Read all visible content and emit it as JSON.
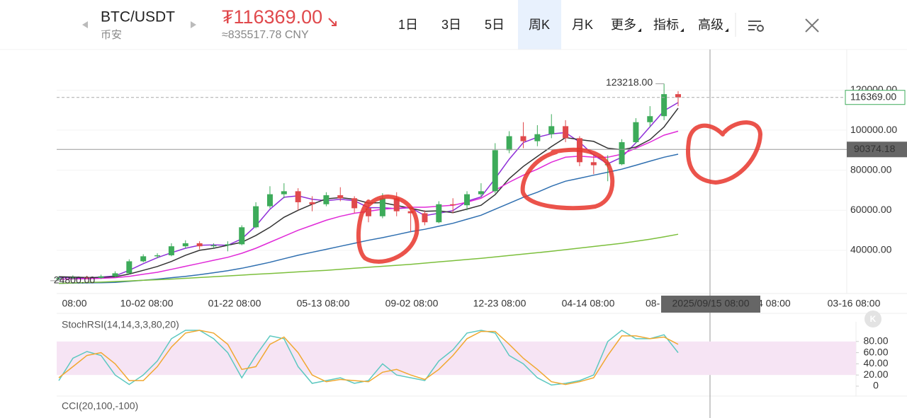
{
  "header": {
    "pair": "BTC/USDT",
    "exchange": "币安",
    "price": "₮116369.00",
    "price_cny": "≈835517.78 CNY"
  },
  "tabs": [
    "1日",
    "3日",
    "5日",
    "周K",
    "月K",
    "更多",
    "指标",
    "高级"
  ],
  "active_tab": 3,
  "chart_data": {
    "type": "candlestick",
    "open": [
      25500,
      26000,
      26500,
      26200,
      27000,
      28500,
      34500,
      37000,
      37500,
      42000,
      43500,
      42000,
      42500,
      43000,
      51500,
      62000,
      68000,
      69500,
      64000,
      63000,
      67500,
      66000,
      61000,
      57000,
      66000,
      59500,
      58500,
      54000,
      63000,
      62500,
      68000,
      69500,
      90000,
      97000,
      94500,
      98000,
      102000,
      96000,
      84000,
      82500,
      83000,
      94000,
      104000,
      107000,
      118000
    ],
    "high": [
      27000,
      27500,
      27300,
      27800,
      29500,
      35500,
      38000,
      38500,
      43500,
      45000,
      44500,
      43500,
      44500,
      52500,
      64000,
      72000,
      73500,
      71000,
      67000,
      69000,
      71500,
      67000,
      63000,
      68500,
      69000,
      61500,
      60000,
      64500,
      66000,
      69500,
      73500,
      93500,
      99500,
      104000,
      102500,
      108000,
      105000,
      97000,
      88000,
      87500,
      95500,
      106000,
      112000,
      123218,
      119500
    ],
    "low": [
      24800,
      25300,
      25500,
      25700,
      26500,
      28000,
      34000,
      36000,
      37000,
      41000,
      40500,
      41000,
      39500,
      42500,
      51000,
      61000,
      66000,
      60000,
      59500,
      62000,
      64500,
      58500,
      54000,
      56000,
      57000,
      49000,
      52500,
      53500,
      58500,
      60000,
      66500,
      68500,
      88500,
      91000,
      92000,
      96000,
      94000,
      82000,
      78000,
      74500,
      82500,
      93500,
      101500,
      105000,
      112000
    ],
    "close": [
      26000,
      26500,
      26200,
      27000,
      28500,
      34500,
      37000,
      37500,
      42000,
      43500,
      42000,
      42500,
      43000,
      51500,
      62000,
      68000,
      69500,
      64000,
      63000,
      67500,
      66000,
      61000,
      57000,
      66000,
      59500,
      58500,
      54000,
      63000,
      62500,
      68000,
      69500,
      90000,
      97000,
      94500,
      98000,
      102000,
      96000,
      84000,
      82500,
      83000,
      94000,
      104000,
      107000,
      118000,
      116369
    ],
    "up_color": "#3dab5a",
    "down_color": "#e0494c",
    "series": [
      {
        "color": "#8e2fd8",
        "values": [
          26500,
          26300,
          26200,
          26600,
          27200,
          30000,
          33300,
          36300,
          38800,
          41000,
          42500,
          42700,
          42500,
          45700,
          52200,
          60500,
          66500,
          67200,
          65500,
          64800,
          65500,
          64800,
          61300,
          61300,
          60800,
          61300,
          57300,
          58500,
          59800,
          64500,
          66700,
          75800,
          85500,
          93800,
          96500,
          98200,
          98800,
          94000,
          87500,
          83200,
          86500,
          93700,
          101700,
          109700,
          113800
        ]
      },
      {
        "color": "#333333",
        "values": [
          26800,
          26600,
          26400,
          26400,
          26800,
          28100,
          30000,
          31900,
          34400,
          37500,
          40000,
          41000,
          42500,
          44000,
          47400,
          51500,
          56500,
          60000,
          63000,
          65700,
          66300,
          65500,
          63600,
          63800,
          62400,
          61000,
          59500,
          59700,
          58800,
          60600,
          62500,
          67800,
          75800,
          81900,
          86900,
          91800,
          96300,
          95300,
          94400,
          91000,
          90200,
          91600,
          95300,
          101600,
          111000
        ]
      },
      {
        "color": "#e02ad8",
        "values": [
          25500,
          25700,
          25800,
          26000,
          26300,
          27000,
          28000,
          29000,
          30500,
          32000,
          33500,
          35000,
          36500,
          38500,
          41000,
          44000,
          47000,
          50000,
          52500,
          55000,
          57000,
          58500,
          59500,
          60500,
          61000,
          61500,
          61500,
          62000,
          62500,
          64000,
          66000,
          70000,
          74000,
          77500,
          80500,
          84000,
          86500,
          87000,
          86500,
          86500,
          88000,
          91000,
          94000,
          97500,
          99500
        ]
      },
      {
        "color": "#2f6fb0",
        "values": [
          23500,
          23600,
          23700,
          23800,
          24000,
          24500,
          25000,
          25600,
          26300,
          27000,
          27800,
          28800,
          29800,
          31000,
          32500,
          34000,
          35800,
          37500,
          39000,
          40500,
          42000,
          43500,
          45000,
          46300,
          47800,
          49300,
          50500,
          52000,
          53500,
          55500,
          57500,
          60500,
          63500,
          66500,
          69000,
          72000,
          74500,
          76000,
          77500,
          79000,
          80500,
          82500,
          84500,
          86500,
          88000
        ]
      },
      {
        "color": "#7cbf3c",
        "values": [
          23500,
          23700,
          23900,
          24100,
          24400,
          24700,
          25000,
          25300,
          25600,
          26000,
          26400,
          26800,
          27200,
          27600,
          28000,
          28400,
          28800,
          29200,
          29600,
          30000,
          30500,
          31000,
          31500,
          32000,
          32500,
          33000,
          33600,
          34200,
          34800,
          35400,
          36000,
          36700,
          37400,
          38100,
          38800,
          39500,
          40300,
          41100,
          41900,
          42700,
          43500,
          44500,
          45500,
          46700,
          48000
        ]
      }
    ],
    "ylim": [
      18400,
      140300
    ],
    "yticks": [
      {
        "value": 120000,
        "label": "120000.00"
      },
      {
        "value": 100000,
        "label": "100000.00"
      },
      {
        "value": 80000,
        "label": "80000.00"
      },
      {
        "value": 60000,
        "label": "60000.00"
      },
      {
        "value": 40000,
        "label": "40000.00"
      }
    ],
    "xtick_labels": [
      "08:00",
      "10-02 08:00",
      "01-22 08:00",
      "05-13 08:00",
      "09-02 08:00",
      "12-23 08:00",
      "04-14 08:00",
      "08-",
      "4 08:00",
      "03-16 08:00"
    ],
    "annotations": [
      {
        "value": 123218,
        "label": "123218.00"
      },
      {
        "value": 24800,
        "label": "24800.00"
      }
    ],
    "last_price": {
      "value": 116369,
      "label": "116369.00",
      "color": "#3dab5a"
    },
    "crosshair": {
      "value": 90374.18,
      "label": "90374.18",
      "time": "2025/09/15 08:00"
    },
    "stoch": {
      "title": "StochRSI(14,14,3,3,80,20)",
      "ylim": [
        0,
        100
      ],
      "band": [
        20,
        80
      ],
      "band_color": "#f6e4f4",
      "yticks": [
        {
          "value": 80,
          "label": "80.00"
        },
        {
          "value": 60,
          "label": "60.00"
        },
        {
          "value": 40,
          "label": "40.00"
        },
        {
          "value": 20,
          "label": "20.00"
        },
        0
      ],
      "series": [
        {
          "color": "#5cc8c0",
          "values": [
            10,
            50,
            62,
            55,
            20,
            3,
            20,
            45,
            85,
            100,
            100,
            85,
            60,
            15,
            55,
            90,
            85,
            35,
            5,
            10,
            15,
            5,
            10,
            40,
            20,
            15,
            10,
            45,
            65,
            95,
            100,
            95,
            55,
            40,
            15,
            2,
            5,
            10,
            20,
            80,
            100,
            85,
            85,
            92,
            60
          ]
        },
        {
          "color": "#f0a830",
          "values": [
            15,
            35,
            55,
            60,
            40,
            10,
            10,
            35,
            70,
            95,
            100,
            95,
            75,
            30,
            35,
            75,
            88,
            60,
            20,
            8,
            12,
            10,
            8,
            25,
            30,
            20,
            12,
            30,
            55,
            85,
            98,
            98,
            75,
            50,
            30,
            8,
            3,
            8,
            15,
            55,
            90,
            90,
            85,
            88,
            75
          ]
        }
      ]
    },
    "cci": {
      "title": "CCI(20,100,-100)"
    }
  }
}
